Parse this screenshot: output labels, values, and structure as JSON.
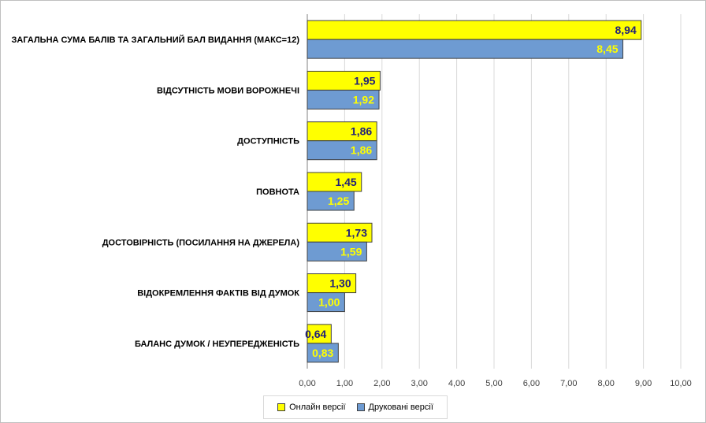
{
  "chart_data": {
    "type": "bar",
    "orientation": "horizontal",
    "categories": [
      "ЗАГАЛЬНА СУМА БАЛІВ ТА ЗАГАЛЬНИЙ БАЛ ВИДАННЯ (МАКС=12)",
      "ВІДСУТНІСТЬ МОВИ ВОРОЖНЕЧІ",
      "ДОСТУПНІСТЬ",
      "ПОВНОТА",
      "ДОСТОВІРНІСТЬ (ПОСИЛАННЯ НА ДЖЕРЕЛА)",
      "ВІДОКРЕМЛЕННЯ ФАКТІВ ВІД ДУМОК",
      "БАЛАНС ДУМОК / НЕУПЕРЕДЖЕНІСТЬ"
    ],
    "series": [
      {
        "name": "Онлайн версії",
        "color": "#ffff00",
        "values": [
          8.94,
          1.95,
          1.86,
          1.45,
          1.73,
          1.3,
          0.64
        ],
        "labels": [
          "8,94",
          "1,95",
          "1,86",
          "1,45",
          "1,73",
          "1,30",
          "0,64"
        ]
      },
      {
        "name": "Друковані версії",
        "color": "#6e9bd2",
        "values": [
          8.45,
          1.92,
          1.86,
          1.25,
          1.59,
          1.0,
          0.83
        ],
        "labels": [
          "8,45",
          "1,92",
          "1,86",
          "1,25",
          "1,59",
          "1,00",
          "0,83"
        ]
      }
    ],
    "xlim": [
      0,
      10
    ],
    "x_ticks": [
      0,
      1,
      2,
      3,
      4,
      5,
      6,
      7,
      8,
      9,
      10
    ],
    "x_tick_labels": [
      "0,00",
      "1,00",
      "2,00",
      "3,00",
      "4,00",
      "5,00",
      "6,00",
      "7,00",
      "8,00",
      "9,00",
      "10,00"
    ],
    "grid": true,
    "legend_position": "bottom",
    "title": "",
    "xlabel": "",
    "ylabel": ""
  }
}
